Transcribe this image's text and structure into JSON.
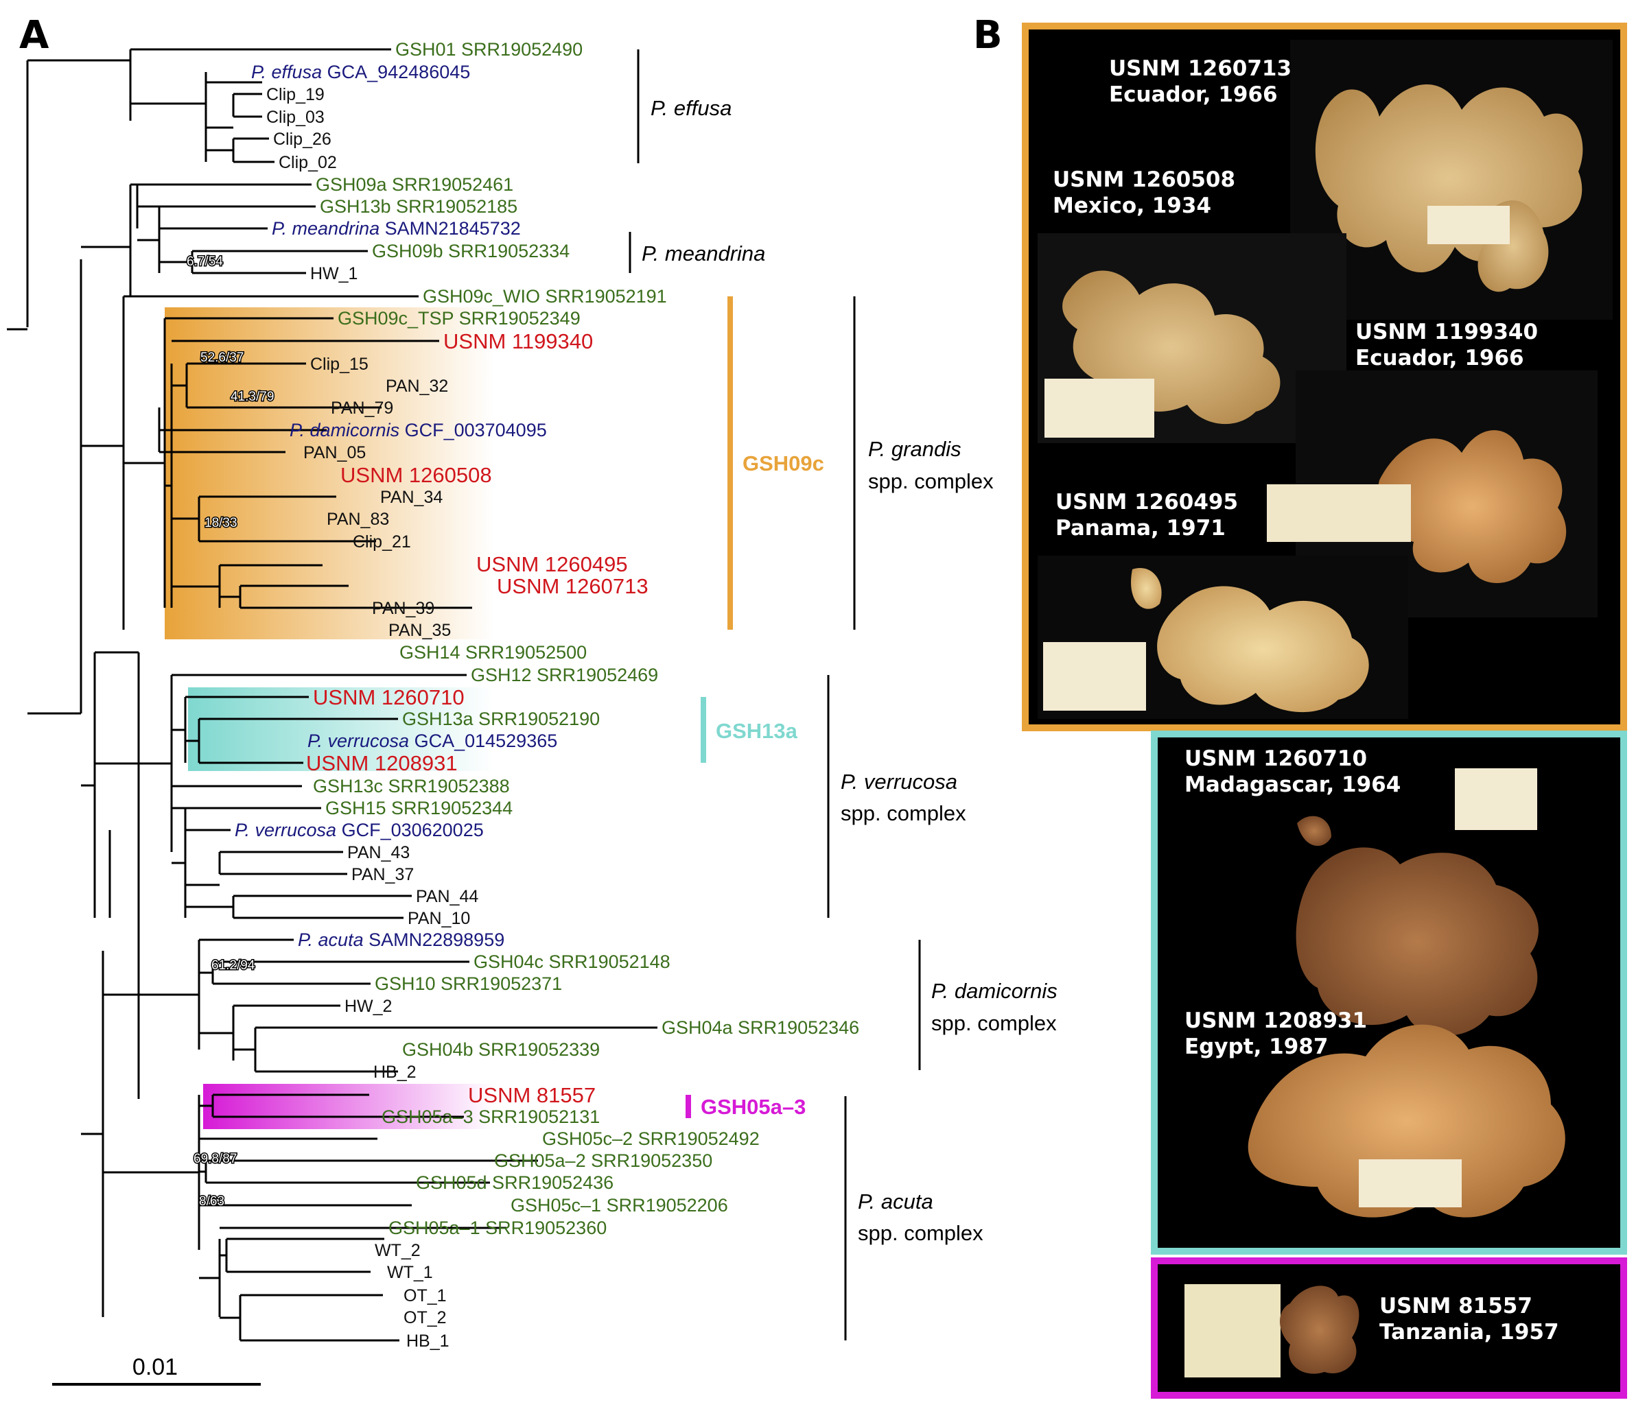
{
  "colors": {
    "green": "#3b6e1c",
    "navy": "#1a1a7e",
    "red": "#d0161c",
    "black": "#111111",
    "orange": "#e8a33a",
    "teal": "#7fd8cf",
    "magenta": "#d61ad6",
    "photo_bg": "#000000"
  },
  "panel_a": {
    "letter": "A",
    "scale_label": "0.01",
    "tips": [
      {
        "label": "GSH01 SRR19052490",
        "color": "green"
      },
      {
        "italic": "P. effusa",
        "label": " GCA_942486045",
        "color": "navy"
      },
      {
        "label": "Clip_19",
        "color": "black"
      },
      {
        "label": "Clip_03",
        "color": "black"
      },
      {
        "label": "Clip_26",
        "color": "black"
      },
      {
        "label": "Clip_02",
        "color": "black"
      },
      {
        "label": "GSH09a SRR19052461",
        "color": "green"
      },
      {
        "label": "GSH13b SRR19052185",
        "color": "green"
      },
      {
        "italic": "P. meandrina",
        "label": " SAMN21845732",
        "color": "navy"
      },
      {
        "label": "GSH09b SRR19052334",
        "color": "green"
      },
      {
        "label": "HW_1",
        "color": "black"
      },
      {
        "label": "GSH09c_WIO SRR19052191",
        "color": "green"
      },
      {
        "label": "GSH09c_TSP SRR19052349",
        "color": "green"
      },
      {
        "label": "USNM 1199340",
        "color": "red"
      },
      {
        "label": "Clip_15",
        "color": "black"
      },
      {
        "label": "PAN_32",
        "color": "black"
      },
      {
        "label": "PAN_79",
        "color": "black"
      },
      {
        "italic": "P. damicornis",
        "label": " GCF_003704095",
        "color": "navy"
      },
      {
        "label": "PAN_05",
        "color": "black"
      },
      {
        "label": "USNM 1260508",
        "color": "red"
      },
      {
        "label": "PAN_34",
        "color": "black"
      },
      {
        "label": "PAN_83",
        "color": "black"
      },
      {
        "label": "Clip_21",
        "color": "black"
      },
      {
        "label": "USNM 1260495",
        "color": "red"
      },
      {
        "label": "USNM 1260713",
        "color": "red"
      },
      {
        "label": "PAN_39",
        "color": "black"
      },
      {
        "label": "PAN_35",
        "color": "black"
      },
      {
        "label": "GSH14 SRR19052500",
        "color": "green"
      },
      {
        "label": "GSH12 SRR19052469",
        "color": "green"
      },
      {
        "label": "USNM 1260710",
        "color": "red"
      },
      {
        "label": "GSH13a SRR19052190",
        "color": "green"
      },
      {
        "italic": "P. verrucosa",
        "label": " GCA_014529365",
        "color": "navy"
      },
      {
        "label": "USNM 1208931",
        "color": "red"
      },
      {
        "label": "GSH13c SRR19052388",
        "color": "green"
      },
      {
        "label": "GSH15 SRR19052344",
        "color": "green"
      },
      {
        "italic": "P. verrucosa",
        "label": " GCF_030620025",
        "color": "navy"
      },
      {
        "label": "PAN_43",
        "color": "black"
      },
      {
        "label": "PAN_37",
        "color": "black"
      },
      {
        "label": "PAN_44",
        "color": "black"
      },
      {
        "label": "PAN_10",
        "color": "black"
      },
      {
        "italic": "P. acuta",
        "label": " SAMN22898959",
        "color": "navy"
      },
      {
        "label": "GSH04c SRR19052148",
        "color": "green"
      },
      {
        "label": "GSH10 SRR19052371",
        "color": "green"
      },
      {
        "label": "HW_2",
        "color": "black"
      },
      {
        "label": "GSH04a SRR19052346",
        "color": "green"
      },
      {
        "label": "GSH04b SRR19052339",
        "color": "green"
      },
      {
        "label": "HB_2",
        "color": "black"
      },
      {
        "label": "USNM 81557",
        "color": "red"
      },
      {
        "label": "GSH05a–3 SRR19052131",
        "color": "green"
      },
      {
        "label": "GSH05c–2 SRR19052492",
        "color": "green"
      },
      {
        "label": "GSH05a–2 SRR19052350",
        "color": "green"
      },
      {
        "label": "GSH05d SRR19052436",
        "color": "green"
      },
      {
        "label": "GSH05c–1 SRR19052206",
        "color": "green"
      },
      {
        "label": "GSH05a–1 SRR19052360",
        "color": "green"
      },
      {
        "label": "WT_2",
        "color": "black"
      },
      {
        "label": "WT_1",
        "color": "black"
      },
      {
        "label": "OT_1",
        "color": "black"
      },
      {
        "label": "OT_2",
        "color": "black"
      },
      {
        "label": "HB_1",
        "color": "black"
      }
    ],
    "node_labels": [
      "6.7/54",
      "52.6/37",
      "41.3/79",
      "18/33",
      "61.2/94",
      "69.8/87",
      "8/63"
    ],
    "clades": {
      "effusa": {
        "line1": "P. effusa"
      },
      "meandrina": {
        "line1": "P. meandrina"
      },
      "grandis": {
        "line1": "P. grandis",
        "line2": "spp. complex"
      },
      "verrucosa": {
        "line1": "P. verrucosa",
        "line2": "spp. complex"
      },
      "damicornis": {
        "line1": "P. damicornis",
        "line2": "spp. complex"
      },
      "acuta": {
        "line1": "P. acuta",
        "line2": "spp. complex"
      }
    },
    "highlights": {
      "gsh09c": "GSH09c",
      "gsh13a": "GSH13a",
      "gsh05a3": "GSH05a–3"
    }
  },
  "panel_b": {
    "letter": "B",
    "specimens": [
      {
        "id": "USNM 1260713",
        "place": "Ecuador, 1966"
      },
      {
        "id": "USNM 1260508",
        "place": "Mexico, 1934"
      },
      {
        "id": "USNM 1199340",
        "place": "Ecuador, 1966"
      },
      {
        "id": "USNM 1260495",
        "place": "Panama, 1971"
      },
      {
        "id": "USNM 1260710",
        "place": "Madagascar, 1964"
      },
      {
        "id": "USNM 1208931",
        "place": "Egypt, 1987"
      },
      {
        "id": "USNM 81557",
        "place": "Tanzania, 1957"
      }
    ]
  }
}
